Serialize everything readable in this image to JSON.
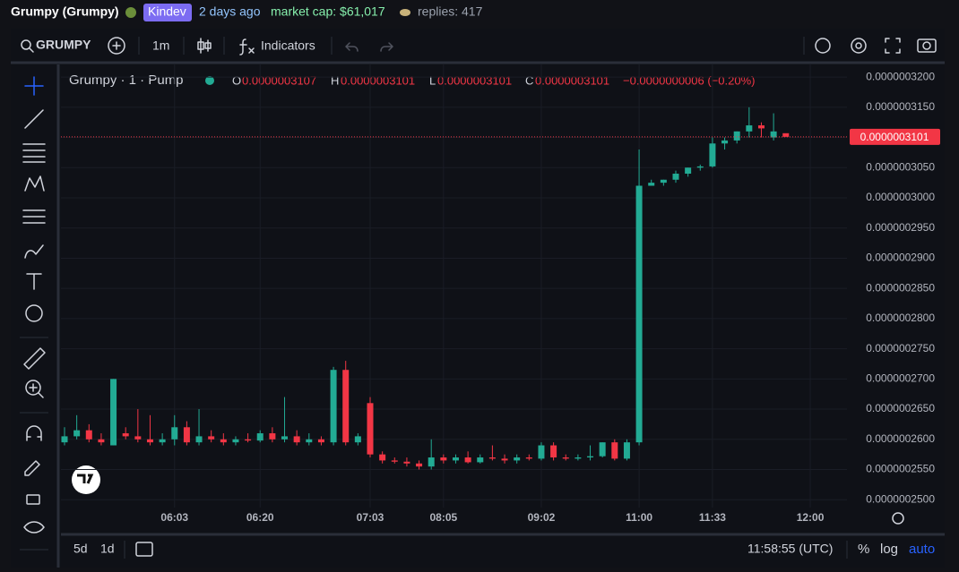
{
  "header": {
    "name": "Grumpy (Grumpy)",
    "creator": "Kindev",
    "age": "2 days ago",
    "market_cap": "market cap: $61,017",
    "replies": "replies: 417"
  },
  "toolbar": {
    "symbol": "GRUMPY",
    "interval": "1m",
    "indicators": "Indicators"
  },
  "legend": {
    "title": "Grumpy · 1 · Pump",
    "o_label": "O",
    "o": "0.0000003107",
    "h_label": "H",
    "h": "0.0000003101",
    "l_label": "L",
    "l": "0.0000003101",
    "c_label": "C",
    "c": "0.0000003101",
    "change": "−0.0000000006 (−0.20%)"
  },
  "chart_data": {
    "type": "candlestick",
    "categories": [
      null,
      null,
      null,
      null,
      null,
      null,
      null,
      null,
      null,
      "06:03",
      null,
      null,
      null,
      null,
      null,
      null,
      "06:20",
      null,
      null,
      null,
      null,
      null,
      null,
      null,
      null,
      "07:03",
      null,
      null,
      null,
      null,
      null,
      "08:05",
      null,
      null,
      null,
      null,
      null,
      null,
      null,
      "09:02",
      null,
      null,
      null,
      null,
      null,
      null,
      null,
      "11:00",
      null,
      null,
      null,
      null,
      null,
      "11:33",
      null,
      null,
      null,
      null,
      null,
      null,
      null,
      "12:00"
    ],
    "open": [
      2.595e-07,
      2.605e-07,
      2.615e-07,
      2.6e-07,
      2.59e-07,
      2.61e-07,
      2.605e-07,
      2.6e-07,
      2.595e-07,
      2.6e-07,
      2.62e-07,
      2.595e-07,
      2.605e-07,
      2.6e-07,
      2.595e-07,
      2.6e-07,
      2.598e-07,
      2.61e-07,
      2.6e-07,
      2.605e-07,
      2.595e-07,
      2.6e-07,
      2.595e-07,
      2.715e-07,
      2.595e-07,
      2.66e-07,
      2.575e-07,
      2.565e-07,
      2.563e-07,
      2.56e-07,
      2.555e-07,
      2.57e-07,
      2.565e-07,
      2.57e-07,
      2.562e-07,
      2.57e-07,
      2.568e-07,
      2.565e-07,
      2.57e-07,
      2.568e-07,
      2.59e-07,
      2.57e-07,
      2.568e-07,
      2.57e-07,
      2.572e-07,
      2.595e-07,
      2.568e-07,
      2.595e-07,
      3.02e-07,
      3.025e-07,
      3.03e-07,
      3.04e-07,
      3.05e-07,
      3.052e-07,
      3.09e-07,
      3.095e-07,
      3.11e-07,
      3.12e-07,
      3.1e-07,
      3.107e-07,
      null,
      null
    ],
    "high": [
      2.62e-07,
      2.64e-07,
      2.625e-07,
      2.61e-07,
      2.7e-07,
      2.62e-07,
      2.65e-07,
      2.64e-07,
      2.61e-07,
      2.64e-07,
      2.63e-07,
      2.65e-07,
      2.615e-07,
      2.61e-07,
      2.605e-07,
      2.61e-07,
      2.615e-07,
      2.62e-07,
      2.67e-07,
      2.615e-07,
      2.61e-07,
      2.605e-07,
      2.72e-07,
      2.73e-07,
      2.61e-07,
      2.67e-07,
      2.58e-07,
      2.57e-07,
      2.57e-07,
      2.565e-07,
      2.6e-07,
      2.575e-07,
      2.575e-07,
      2.58e-07,
      2.575e-07,
      2.59e-07,
      2.575e-07,
      2.575e-07,
      2.575e-07,
      2.595e-07,
      2.595e-07,
      2.575e-07,
      2.575e-07,
      2.59e-07,
      2.595e-07,
      2.6e-07,
      2.6e-07,
      3.08e-07,
      3.03e-07,
      3.03e-07,
      3.045e-07,
      3.05e-07,
      3.055e-07,
      3.1e-07,
      3.1e-07,
      3.11e-07,
      3.15e-07,
      3.125e-07,
      3.14e-07,
      3.101e-07,
      null,
      null
    ],
    "low": [
      2.59e-07,
      2.6e-07,
      2.595e-07,
      2.59e-07,
      2.59e-07,
      2.6e-07,
      2.595e-07,
      2.59e-07,
      2.59e-07,
      2.59e-07,
      2.59e-07,
      2.59e-07,
      2.595e-07,
      2.59e-07,
      2.59e-07,
      2.595e-07,
      2.595e-07,
      2.595e-07,
      2.595e-07,
      2.59e-07,
      2.59e-07,
      2.59e-07,
      2.59e-07,
      2.59e-07,
      2.59e-07,
      2.57e-07,
      2.56e-07,
      2.56e-07,
      2.555e-07,
      2.55e-07,
      2.55e-07,
      2.56e-07,
      2.56e-07,
      2.56e-07,
      2.56e-07,
      2.565e-07,
      2.56e-07,
      2.56e-07,
      2.565e-07,
      2.565e-07,
      2.565e-07,
      2.565e-07,
      2.565e-07,
      2.565e-07,
      2.57e-07,
      2.565e-07,
      2.565e-07,
      2.59e-07,
      3.02e-07,
      3.02e-07,
      3.025e-07,
      3.035e-07,
      3.045e-07,
      3.05e-07,
      3.08e-07,
      3.09e-07,
      3.1e-07,
      3.1e-07,
      3.095e-07,
      3.101e-07,
      null,
      null
    ],
    "close": [
      2.605e-07,
      2.615e-07,
      2.6e-07,
      2.595e-07,
      2.7e-07,
      2.605e-07,
      2.6e-07,
      2.595e-07,
      2.6e-07,
      2.62e-07,
      2.595e-07,
      2.605e-07,
      2.6e-07,
      2.595e-07,
      2.6e-07,
      2.598e-07,
      2.61e-07,
      2.6e-07,
      2.605e-07,
      2.595e-07,
      2.6e-07,
      2.595e-07,
      2.715e-07,
      2.595e-07,
      2.605e-07,
      2.575e-07,
      2.565e-07,
      2.563e-07,
      2.56e-07,
      2.555e-07,
      2.57e-07,
      2.565e-07,
      2.57e-07,
      2.562e-07,
      2.57e-07,
      2.568e-07,
      2.565e-07,
      2.57e-07,
      2.568e-07,
      2.59e-07,
      2.57e-07,
      2.568e-07,
      2.57e-07,
      2.572e-07,
      2.595e-07,
      2.568e-07,
      2.595e-07,
      3.02e-07,
      3.025e-07,
      3.03e-07,
      3.04e-07,
      3.05e-07,
      3.052e-07,
      3.09e-07,
      3.095e-07,
      3.11e-07,
      3.12e-07,
      3.115e-07,
      3.11e-07,
      3.101e-07,
      null,
      null
    ],
    "up_color": "#22ab94",
    "down_color": "#f23645",
    "ylim": [
      2.487e-07,
      3.212e-07
    ],
    "yticks": [
      {
        "value": 2.5e-07,
        "label": "0.0000002500"
      },
      {
        "value": 2.55e-07,
        "label": "0.0000002550"
      },
      {
        "value": 2.6e-07,
        "label": "0.0000002600"
      },
      {
        "value": 2.65e-07,
        "label": "0.0000002650"
      },
      {
        "value": 2.7e-07,
        "label": "0.0000002700"
      },
      {
        "value": 2.75e-07,
        "label": "0.0000002750"
      },
      {
        "value": 2.8e-07,
        "label": "0.0000002800"
      },
      {
        "value": 2.85e-07,
        "label": "0.0000002850"
      },
      {
        "value": 2.9e-07,
        "label": "0.0000002900"
      },
      {
        "value": 2.95e-07,
        "label": "0.0000002950"
      },
      {
        "value": 3e-07,
        "label": "0.0000003000"
      },
      {
        "value": 3.05e-07,
        "label": "0.0000003050"
      },
      {
        "value": 3.1e-07,
        "label": "0.0000003100"
      },
      {
        "value": 3.15e-07,
        "label": "0.0000003150"
      },
      {
        "value": 3.2e-07,
        "label": "0.0000003200"
      }
    ],
    "last_price": {
      "value": 3.101e-07,
      "label": "0.0000003101"
    },
    "grid": true
  },
  "footer": {
    "range_5d": "5d",
    "range_1d": "1d",
    "clock": "11:58:55 (UTC)",
    "percent": "%",
    "log": "log",
    "auto": "auto"
  }
}
